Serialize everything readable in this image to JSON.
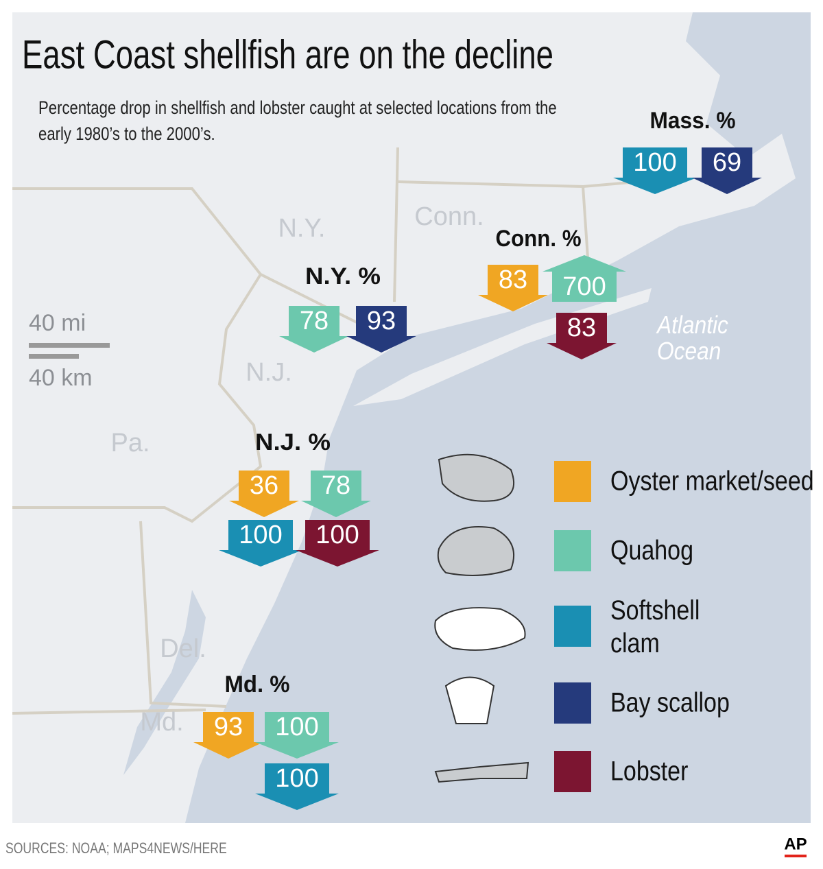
{
  "title": "East Coast shellfish are on the decline",
  "subtitle": "Percentage drop in shellfish and lobster caught at selected locations from the early 1980’s to the 2000’s.",
  "map_labels": [
    "N.Y.",
    "Conn.",
    "N.J.",
    "Pa.",
    "Del.",
    "Md.",
    "Atlantic Ocean"
  ],
  "scale": {
    "miles": "40 mi",
    "kilometers": "40 km"
  },
  "locations": [
    {
      "label": "Mass. %",
      "arrows": [
        {
          "value": "100",
          "color": "#1a8fb3",
          "direction": "down"
        },
        {
          "value": "69",
          "color": "#253a7c",
          "direction": "down"
        }
      ]
    },
    {
      "label": "Conn. %",
      "arrows": [
        {
          "value": "83",
          "color": "#f0a623",
          "direction": "down"
        },
        {
          "value": "700",
          "color": "#6cc8ad",
          "direction": "up"
        },
        {
          "value": "83",
          "color": "#7c1531",
          "direction": "down"
        }
      ]
    },
    {
      "label": "N.Y. %",
      "arrows": [
        {
          "value": "78",
          "color": "#6cc8ad",
          "direction": "down"
        },
        {
          "value": "93",
          "color": "#253a7c",
          "direction": "down"
        }
      ]
    },
    {
      "label": "N.J. %",
      "arrows": [
        {
          "value": "36",
          "color": "#f0a623",
          "direction": "down"
        },
        {
          "value": "78",
          "color": "#6cc8ad",
          "direction": "down"
        },
        {
          "value": "100",
          "color": "#1a8fb3",
          "direction": "down"
        },
        {
          "value": "100",
          "color": "#7c1531",
          "direction": "down"
        }
      ]
    },
    {
      "label": "Md. %",
      "arrows": [
        {
          "value": "93",
          "color": "#f0a623",
          "direction": "down"
        },
        {
          "value": "100",
          "color": "#6cc8ad",
          "direction": "down"
        },
        {
          "value": "100",
          "color": "#1a8fb3",
          "direction": "down"
        }
      ]
    }
  ],
  "legend": [
    {
      "label": "Oyster market/seed",
      "color": "#f0a623"
    },
    {
      "label": "Quahog",
      "color": "#6cc8ad"
    },
    {
      "label": "Softshell clam",
      "color": "#1a8fb3"
    },
    {
      "label": "Bay scallop",
      "color": "#253a7c"
    },
    {
      "label": "Lobster",
      "color": "#7c1531"
    }
  ],
  "source": "SOURCES: NOAA; MAPS4NEWS/HERE",
  "logo": "AP"
}
